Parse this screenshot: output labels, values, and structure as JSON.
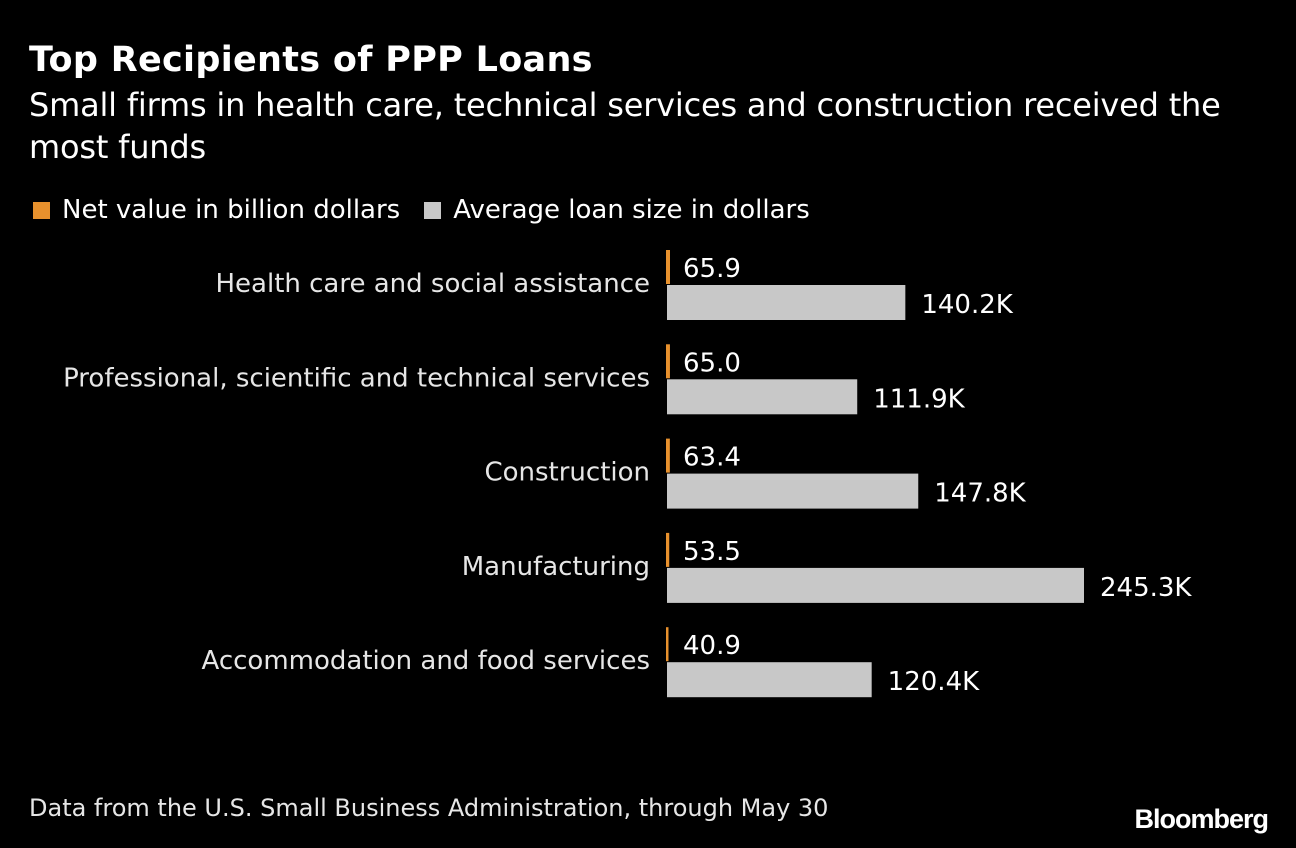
{
  "chart_data": {
    "type": "bar",
    "orientation": "horizontal",
    "title": "Top Recipients of PPP Loans",
    "subtitle": "Small firms in health care, technical services and construction received the most funds",
    "categories": [
      "Health care and social assistance",
      "Professional, scientific and technical services",
      "Construction",
      "Manufacturing",
      "Accommodation and food services"
    ],
    "series": [
      {
        "name": "Net value in billion dollars",
        "color": "#e8912d",
        "values": [
          65.9,
          65.0,
          63.4,
          53.5,
          40.9
        ],
        "labels": [
          "65.9",
          "65.0",
          "63.4",
          "53.5",
          "40.9"
        ]
      },
      {
        "name": "Average loan size in dollars",
        "color": "#c8c8c8",
        "values": [
          140200,
          111900,
          147800,
          245300,
          120400
        ],
        "labels": [
          "140.2K",
          "111.9K",
          "147.8K",
          "245.3K",
          "120.4K"
        ]
      }
    ],
    "legend": "top-left",
    "grid": false
  },
  "source": "Data from the U.S. Small Business Administration, through May 30",
  "brand": "Bloomberg"
}
